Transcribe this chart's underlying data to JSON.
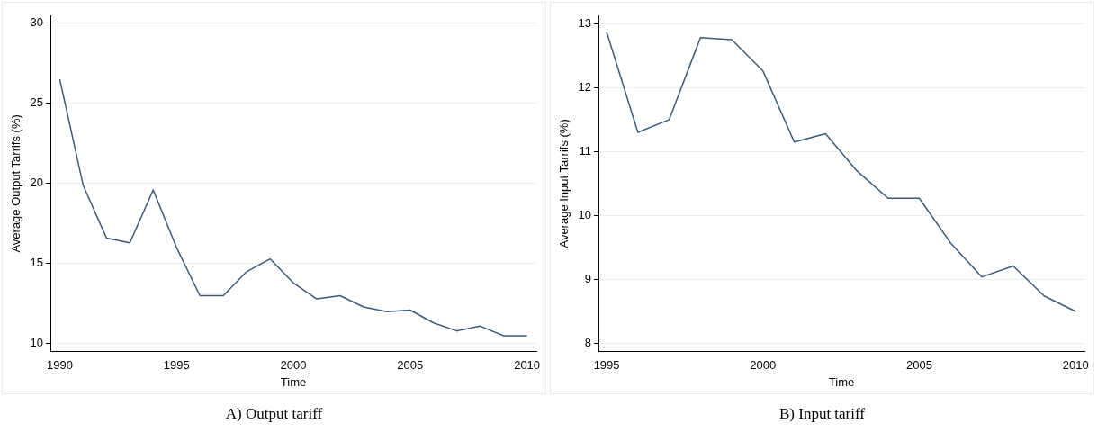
{
  "chart_data": [
    {
      "type": "line",
      "xlabel": "Time",
      "ylabel": "Average Output Tarrifs (%)",
      "annotations": [
        "A) Output tariff"
      ],
      "x": [
        1990,
        1991,
        1992,
        1993,
        1994,
        1995,
        1996,
        1997,
        1998,
        1999,
        2000,
        2001,
        2002,
        2003,
        2004,
        2005,
        2006,
        2007,
        2008,
        2009,
        2010
      ],
      "series": [
        {
          "color": "#3d5a7a",
          "values": [
            26.5,
            19.9,
            16.6,
            16.3,
            19.6,
            16.0,
            13.0,
            13.0,
            14.5,
            15.3,
            13.8,
            12.8,
            13.0,
            12.3,
            12.0,
            12.1,
            11.3,
            10.8,
            11.1,
            10.5,
            10.5
          ]
        }
      ],
      "xlim": [
        1989.6,
        2010.4
      ],
      "xticks": [
        1990,
        1995,
        2000,
        2005,
        2010
      ],
      "ylim": [
        9.5,
        30.5
      ],
      "yticks": [
        10,
        15,
        20,
        25,
        30
      ],
      "grid": "y",
      "legend": false,
      "marker": "none",
      "line_style": "solid"
    },
    {
      "type": "line",
      "xlabel": "Time",
      "ylabel": "Average Input Tarrifs (%)",
      "annotations": [
        "B) Input tariff"
      ],
      "x": [
        1995,
        1996,
        1997,
        1998,
        1999,
        2000,
        2001,
        2002,
        2003,
        2004,
        2005,
        2006,
        2007,
        2008,
        2009,
        2010
      ],
      "series": [
        {
          "color": "#3d5a7a",
          "values": [
            12.87,
            11.3,
            11.5,
            12.78,
            12.75,
            12.26,
            11.15,
            11.28,
            10.7,
            10.27,
            10.27,
            9.57,
            9.04,
            9.21,
            8.74,
            8.5
          ]
        }
      ],
      "xlim": [
        1994.74,
        2010.28
      ],
      "xticks": [
        1995,
        2000,
        2005,
        2010
      ],
      "ylim": [
        7.87,
        13.13
      ],
      "yticks": [
        8,
        9,
        10,
        11,
        12,
        13
      ],
      "grid": "y",
      "legend": false,
      "marker": "none",
      "line_style": "solid"
    }
  ]
}
